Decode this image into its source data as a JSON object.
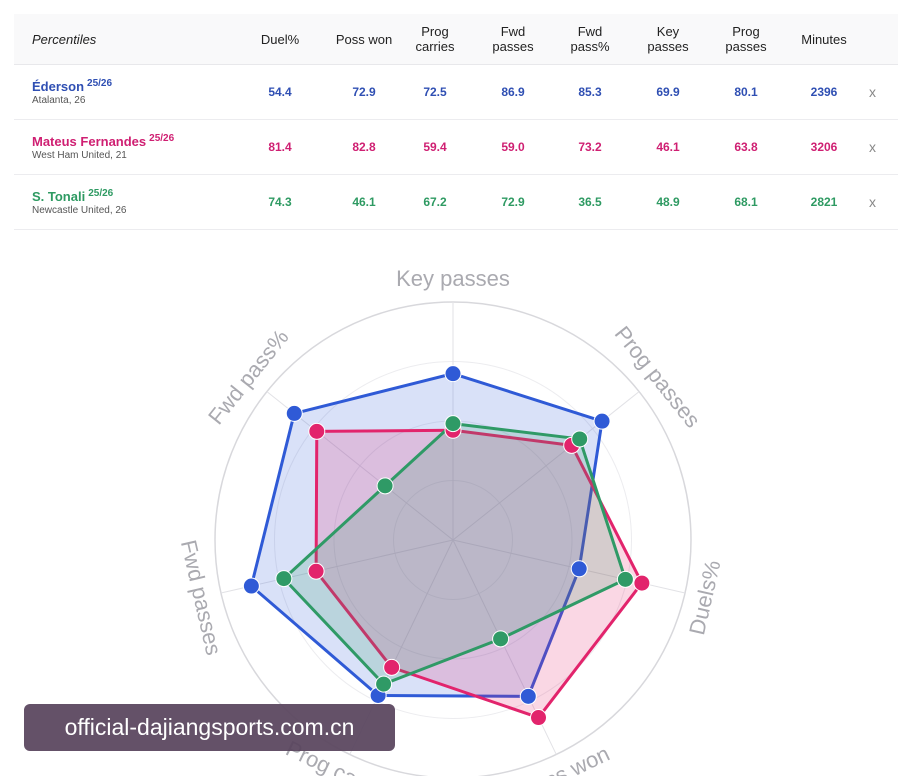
{
  "table": {
    "header_first": "Percentiles",
    "columns": [
      [
        "Duel%"
      ],
      [
        "Poss won"
      ],
      [
        "Prog",
        "carries"
      ],
      [
        "Fwd",
        "passes"
      ],
      [
        "Fwd",
        "pass%"
      ],
      [
        "Key",
        "passes"
      ],
      [
        "Prog",
        "passes"
      ],
      [
        "Minutes"
      ]
    ],
    "remove_label": "x"
  },
  "players": [
    {
      "name": "Éderson",
      "season": "25/26",
      "club": "Atalanta, 26",
      "color": "#2f4fb3",
      "values": [
        "54.4",
        "72.9",
        "72.5",
        "86.9",
        "85.3",
        "69.9",
        "80.1",
        "2396"
      ]
    },
    {
      "name": "Mateus Fernandes",
      "season": "25/26",
      "club": "West Ham United, 21",
      "color": "#cf1f72",
      "values": [
        "81.4",
        "82.8",
        "59.4",
        "59.0",
        "73.2",
        "46.1",
        "63.8",
        "3206"
      ]
    },
    {
      "name": "S. Tonali",
      "season": "25/26",
      "club": "Newcastle United, 26",
      "color": "#2e9a62",
      "values": [
        "74.3",
        "46.1",
        "67.2",
        "72.9",
        "36.5",
        "48.9",
        "68.1",
        "2821"
      ]
    }
  ],
  "chart_data": {
    "type": "radar",
    "axes": [
      "Key passes",
      "Prog passes",
      "Duels%",
      "Poss won",
      "Prog carries",
      "Fwd passes",
      "Fwd pass%"
    ],
    "range": [
      0,
      100
    ],
    "series": [
      {
        "name": "Éderson",
        "color": "#2f5ad6",
        "values": [
          69.9,
          80.1,
          54.4,
          72.9,
          72.5,
          86.9,
          85.3
        ]
      },
      {
        "name": "Mateus Fernandes",
        "color": "#e2246c",
        "values": [
          46.1,
          63.8,
          81.4,
          82.8,
          59.4,
          59.0,
          73.2
        ]
      },
      {
        "name": "S. Tonali",
        "color": "#2f9a66",
        "values": [
          48.9,
          68.1,
          74.3,
          46.1,
          67.2,
          72.9,
          36.5
        ]
      }
    ]
  },
  "watermark": {
    "text": "official-dajiangsports.com.cn"
  }
}
